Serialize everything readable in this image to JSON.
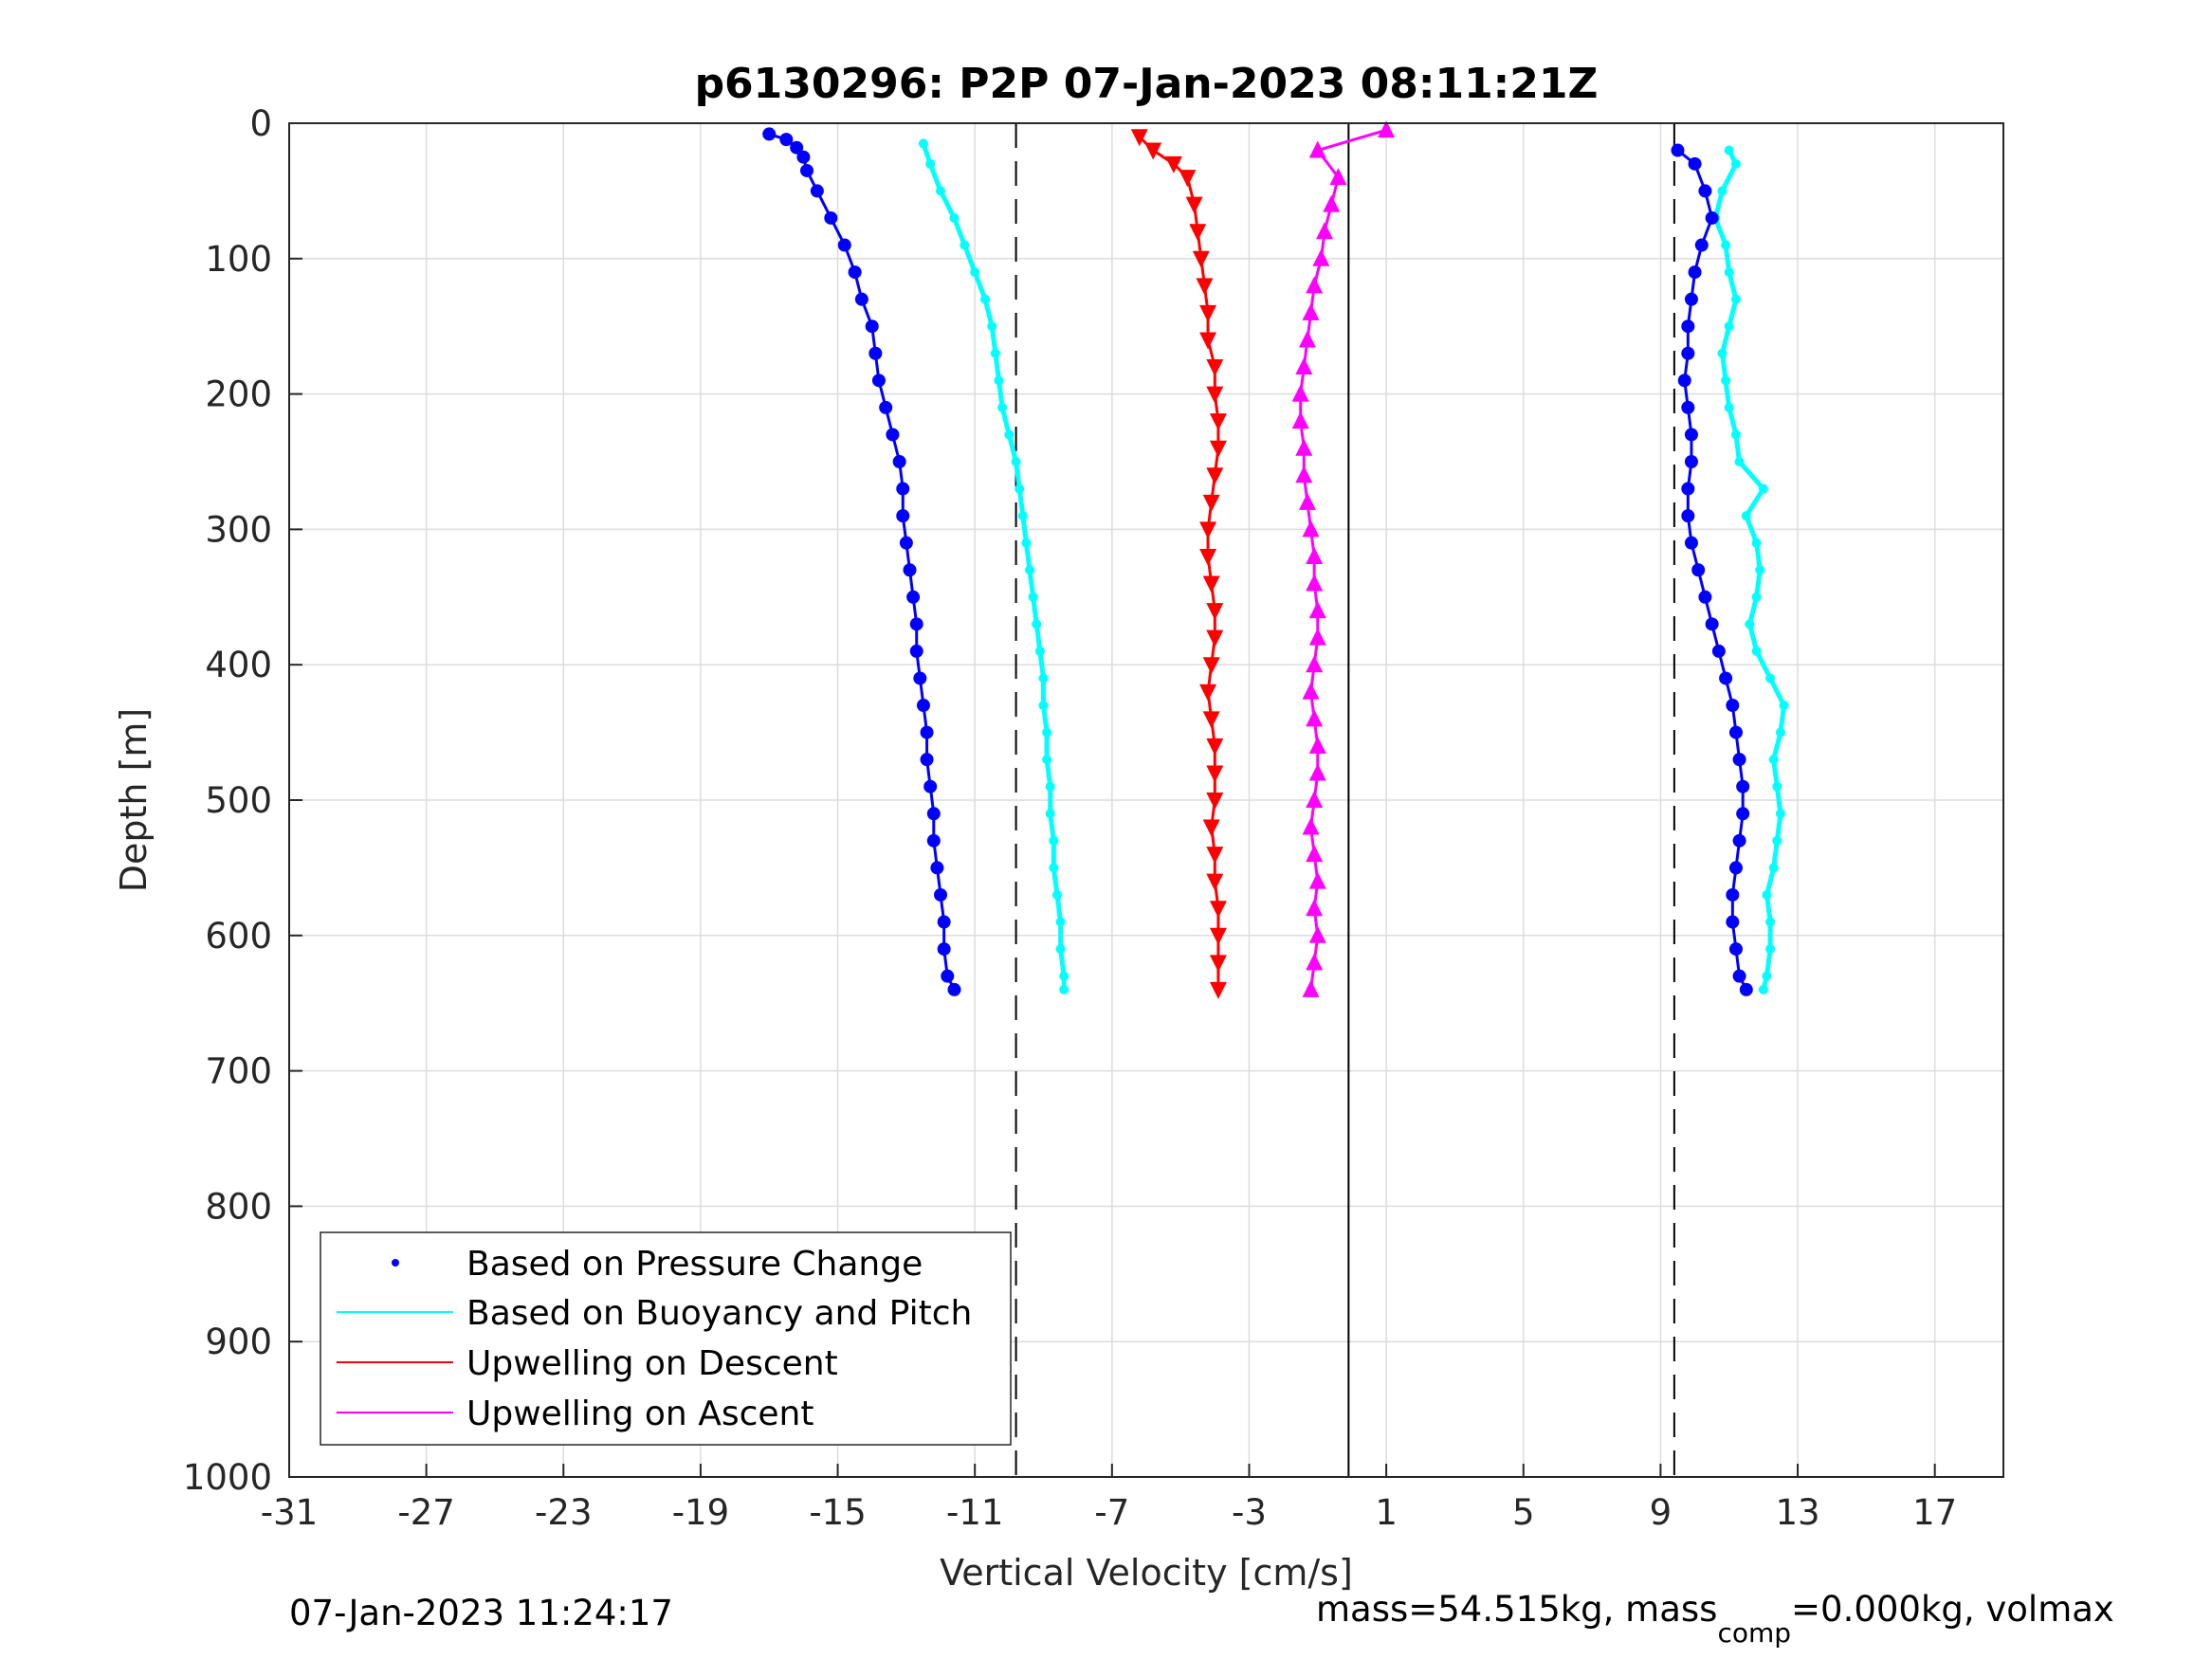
{
  "chart_data": {
    "type": "scatter",
    "title": "p6130296: P2P 07-Jan-2023 08:11:21Z",
    "xlabel": "Vertical Velocity [cm/s]",
    "ylabel": "Depth [m]",
    "xlim": [
      -31,
      19
    ],
    "ylim": [
      0,
      1000
    ],
    "y_reversed": true,
    "x_ticks": [
      -31,
      -27,
      -23,
      -19,
      -15,
      -11,
      -7,
      -3,
      1,
      5,
      9,
      13,
      17
    ],
    "y_ticks": [
      0,
      100,
      200,
      300,
      400,
      500,
      600,
      700,
      800,
      900,
      1000
    ],
    "grid": true,
    "legend_position": "bottom-left",
    "series": [
      {
        "name": "Based on Pressure Change",
        "color": "#0000ff",
        "marker": "dot",
        "phase_descent": {
          "depth": [
            8,
            12,
            18,
            25,
            35,
            50,
            70,
            90,
            110,
            130,
            150,
            170,
            190,
            210,
            230,
            250,
            270,
            290,
            310,
            330,
            350,
            370,
            390,
            410,
            430,
            450,
            470,
            490,
            510,
            530,
            550,
            570,
            590,
            610,
            630,
            640
          ],
          "velocity": [
            -17.0,
            -16.5,
            -16.2,
            -16.0,
            -15.9,
            -15.6,
            -15.2,
            -14.8,
            -14.5,
            -14.3,
            -14.0,
            -13.9,
            -13.8,
            -13.6,
            -13.4,
            -13.2,
            -13.1,
            -13.1,
            -13.0,
            -12.9,
            -12.8,
            -12.7,
            -12.7,
            -12.6,
            -12.5,
            -12.4,
            -12.4,
            -12.3,
            -12.2,
            -12.2,
            -12.1,
            -12.0,
            -11.9,
            -11.9,
            -11.8,
            -11.6
          ]
        },
        "phase_ascent": {
          "depth": [
            640,
            630,
            610,
            590,
            570,
            550,
            530,
            510,
            490,
            470,
            450,
            430,
            410,
            390,
            370,
            350,
            330,
            310,
            290,
            270,
            250,
            230,
            210,
            190,
            170,
            150,
            130,
            110,
            90,
            70,
            50,
            30,
            20
          ],
          "velocity": [
            11.5,
            11.3,
            11.2,
            11.1,
            11.1,
            11.2,
            11.3,
            11.4,
            11.4,
            11.3,
            11.2,
            11.1,
            10.9,
            10.7,
            10.5,
            10.3,
            10.1,
            9.9,
            9.8,
            9.8,
            9.9,
            9.9,
            9.8,
            9.7,
            9.8,
            9.8,
            9.9,
            10.0,
            10.2,
            10.5,
            10.3,
            10.0,
            9.5
          ]
        }
      },
      {
        "name": "Based on Buoyancy and Pitch",
        "color": "#00ffff",
        "marker": "line",
        "phase_descent": {
          "depth": [
            15,
            30,
            50,
            70,
            90,
            110,
            130,
            150,
            170,
            190,
            210,
            230,
            250,
            270,
            290,
            310,
            330,
            350,
            370,
            390,
            410,
            430,
            450,
            470,
            490,
            510,
            530,
            550,
            570,
            590,
            610,
            630,
            640
          ],
          "velocity": [
            -12.5,
            -12.3,
            -12.0,
            -11.6,
            -11.3,
            -11.0,
            -10.7,
            -10.5,
            -10.4,
            -10.3,
            -10.2,
            -10.0,
            -9.8,
            -9.7,
            -9.6,
            -9.5,
            -9.4,
            -9.3,
            -9.2,
            -9.1,
            -9.0,
            -9.0,
            -8.9,
            -8.9,
            -8.8,
            -8.8,
            -8.7,
            -8.7,
            -8.6,
            -8.5,
            -8.5,
            -8.4,
            -8.4
          ]
        },
        "phase_ascent": {
          "depth": [
            640,
            630,
            610,
            590,
            570,
            550,
            530,
            510,
            490,
            470,
            450,
            430,
            410,
            390,
            370,
            350,
            330,
            310,
            290,
            270,
            250,
            230,
            210,
            190,
            170,
            150,
            130,
            110,
            90,
            70,
            50,
            30,
            20
          ],
          "velocity": [
            12.0,
            12.1,
            12.2,
            12.2,
            12.1,
            12.3,
            12.4,
            12.5,
            12.4,
            12.3,
            12.5,
            12.6,
            12.2,
            11.8,
            11.6,
            11.8,
            11.9,
            11.8,
            11.5,
            12.0,
            11.3,
            11.2,
            11.0,
            10.9,
            10.8,
            11.0,
            11.2,
            11.0,
            10.9,
            10.6,
            10.8,
            11.2,
            11.0
          ]
        }
      },
      {
        "name": "Upwelling on Descent",
        "color": "#ff0000",
        "marker": "triangle-down",
        "depth": [
          10,
          20,
          30,
          40,
          60,
          80,
          100,
          120,
          140,
          160,
          180,
          200,
          220,
          240,
          260,
          280,
          300,
          320,
          340,
          360,
          380,
          400,
          420,
          440,
          460,
          480,
          500,
          520,
          540,
          560,
          580,
          600,
          620,
          640
        ],
        "velocity": [
          -6.2,
          -5.8,
          -5.2,
          -4.8,
          -4.6,
          -4.5,
          -4.4,
          -4.3,
          -4.2,
          -4.2,
          -4.0,
          -4.0,
          -3.9,
          -3.9,
          -4.0,
          -4.1,
          -4.2,
          -4.2,
          -4.1,
          -4.0,
          -4.0,
          -4.1,
          -4.2,
          -4.1,
          -4.0,
          -4.0,
          -4.0,
          -4.1,
          -4.0,
          -4.0,
          -3.9,
          -3.9,
          -3.9,
          -3.9
        ]
      },
      {
        "name": "Upwelling on Ascent",
        "color": "#ff00ff",
        "marker": "triangle-up",
        "depth": [
          640,
          620,
          600,
          580,
          560,
          540,
          520,
          500,
          480,
          460,
          440,
          420,
          400,
          380,
          360,
          340,
          320,
          300,
          280,
          260,
          240,
          220,
          200,
          180,
          160,
          140,
          120,
          100,
          80,
          60,
          40,
          20,
          5
        ],
        "velocity": [
          -1.2,
          -1.1,
          -1.0,
          -1.1,
          -1.0,
          -1.1,
          -1.2,
          -1.1,
          -1.0,
          -1.0,
          -1.1,
          -1.2,
          -1.1,
          -1.0,
          -1.0,
          -1.1,
          -1.1,
          -1.2,
          -1.3,
          -1.4,
          -1.4,
          -1.5,
          -1.5,
          -1.4,
          -1.3,
          -1.2,
          -1.1,
          -0.9,
          -0.8,
          -0.6,
          -0.4,
          -1.0,
          1.0
        ]
      }
    ],
    "reference_lines": {
      "dashed_velocity": [
        -9.8,
        9.4
      ],
      "solid_velocity": [
        -0.1
      ]
    },
    "annotations": {
      "footer_left": "07-Jan-2023 11:24:17",
      "footer_right_prefix": "mass=54.515kg, mass",
      "footer_right_subscript": "comp",
      "footer_right_suffix": "=0.000kg, volmax"
    }
  }
}
